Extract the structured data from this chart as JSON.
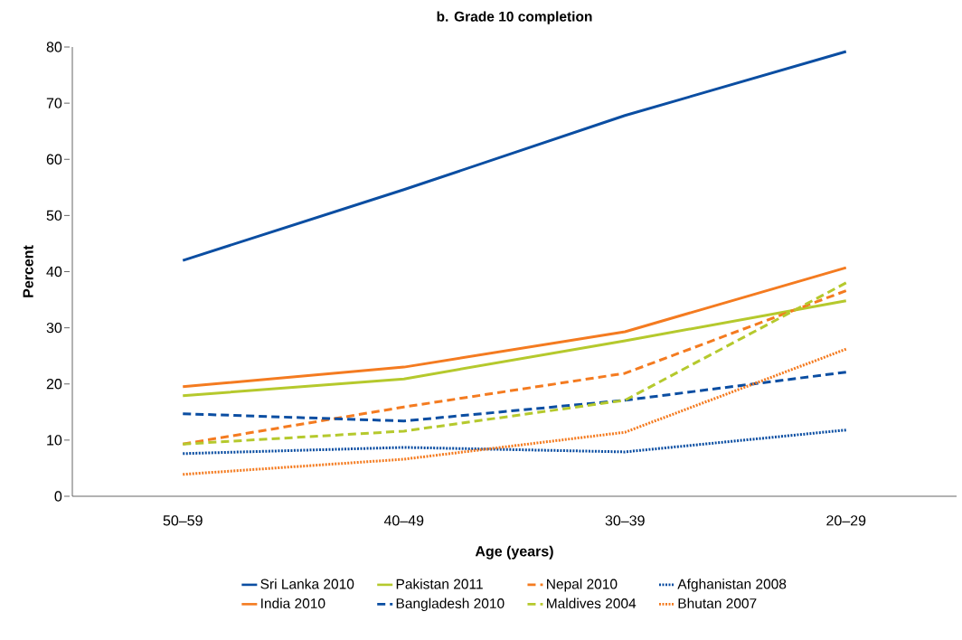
{
  "chart_data": {
    "type": "line",
    "title": "b. Grade 10 completion",
    "xlabel": "Age (years)",
    "ylabel": "Percent",
    "categories": [
      "50–59",
      "40–49",
      "30–39",
      "20–29"
    ],
    "ylim": [
      0,
      80
    ],
    "yticks": [
      0,
      10,
      20,
      30,
      40,
      50,
      60,
      70,
      80
    ],
    "grid": false,
    "legend": "bottom",
    "marker": "none",
    "series": [
      {
        "name": "Sri Lanka 2010",
        "color": "#0b4ea2",
        "line_style": "solid",
        "values": [
          42.0,
          54.6,
          67.8,
          79.2
        ]
      },
      {
        "name": "Pakistan 2011",
        "color": "#b5c92d",
        "line_style": "solid",
        "values": [
          17.9,
          20.9,
          27.7,
          34.8
        ]
      },
      {
        "name": "Nepal 2010",
        "color": "#f47b20",
        "line_style": "dashed",
        "values": [
          9.3,
          15.9,
          21.9,
          36.6
        ]
      },
      {
        "name": "Afghanistan 2008",
        "color": "#0b4ea2",
        "line_style": "dotted",
        "values": [
          7.6,
          8.7,
          7.9,
          11.8
        ]
      },
      {
        "name": "India 2010",
        "color": "#f47b20",
        "line_style": "solid",
        "values": [
          19.5,
          23.0,
          29.3,
          40.7
        ]
      },
      {
        "name": "Bangladesh 2010",
        "color": "#0b4ea2",
        "line_style": "dashed",
        "values": [
          14.7,
          13.4,
          17.1,
          22.1
        ]
      },
      {
        "name": "Maldives 2004",
        "color": "#b5c92d",
        "line_style": "dashed",
        "values": [
          9.3,
          11.6,
          17.1,
          38.0
        ]
      },
      {
        "name": "Bhutan 2007",
        "color": "#f47b20",
        "line_style": "dotted",
        "values": [
          3.9,
          6.6,
          11.4,
          26.2
        ]
      }
    ]
  }
}
